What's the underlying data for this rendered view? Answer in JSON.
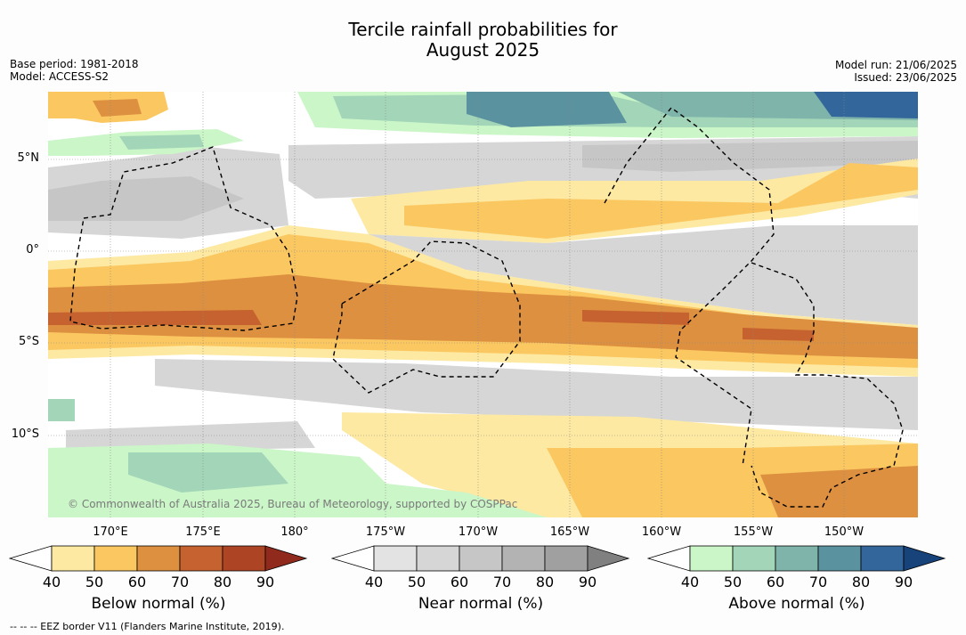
{
  "title": {
    "line1": "Tercile rainfall probabilities for",
    "line2": "August 2025"
  },
  "meta_left": {
    "base_period": "Base period: 1981-2018",
    "model": "Model: ACCESS-S2"
  },
  "meta_right": {
    "model_run": "Model run: 21/06/2025",
    "issued": "Issued: 23/06/2025"
  },
  "lat_labels": [
    "5°N",
    "0°",
    "5°S",
    "10°S"
  ],
  "lon_labels": [
    "170°E",
    "175°E",
    "180°",
    "175°W",
    "170°W",
    "165°W",
    "160°W",
    "155°W",
    "150°W"
  ],
  "copyright": "© Commonwealth of Australia 2025, Bureau of Meteorology, supported by COSPPac",
  "colorbars": [
    {
      "label": "Below normal (%)",
      "ticks": [
        "40",
        "50",
        "60",
        "70",
        "80",
        "90"
      ],
      "colors": [
        "#fde9a2",
        "#fbc761",
        "#dd9040",
        "#c6622f",
        "#ad4525",
        "#8f2a1c"
      ]
    },
    {
      "label": "Near normal (%)",
      "ticks": [
        "40",
        "50",
        "60",
        "70",
        "80",
        "90"
      ],
      "colors": [
        "#e3e3e3",
        "#d6d6d6",
        "#c6c6c6",
        "#b3b3b3",
        "#a0a0a0",
        "#808080"
      ]
    },
    {
      "label": "Above normal (%)",
      "ticks": [
        "40",
        "50",
        "60",
        "70",
        "80",
        "90"
      ],
      "colors": [
        "#cbf6c8",
        "#a3d5b8",
        "#7fb4ab",
        "#5b92a0",
        "#33669a",
        "#17437a"
      ]
    }
  ],
  "footnote": "--  --  -- EEZ border V11 (Flanders Marine Institute, 2019)."
}
